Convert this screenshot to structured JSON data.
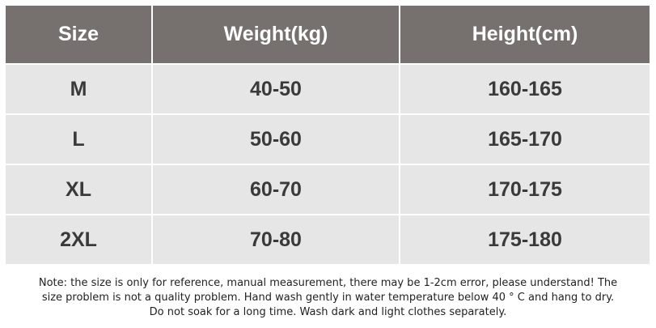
{
  "table": {
    "header": [
      "Size",
      "Weight(kg)",
      "Height(cm)"
    ],
    "rows": [
      [
        "M",
        "40-50",
        "160-165"
      ],
      [
        "L",
        "50-60",
        "165-170"
      ],
      [
        "XL",
        "60-70",
        "170-175"
      ],
      [
        "2XL",
        "70-80",
        "175-180"
      ]
    ]
  },
  "note": {
    "lines": [
      "Note: the size is only for reference, manual measurement, there may be 1-2cm error, please understand! The",
      "size problem is not a quality problem. Hand wash gently in water temperature below 40 ° C and hang to dry.",
      "Do not soak for a long time. Wash dark and light clothes separately."
    ]
  }
}
